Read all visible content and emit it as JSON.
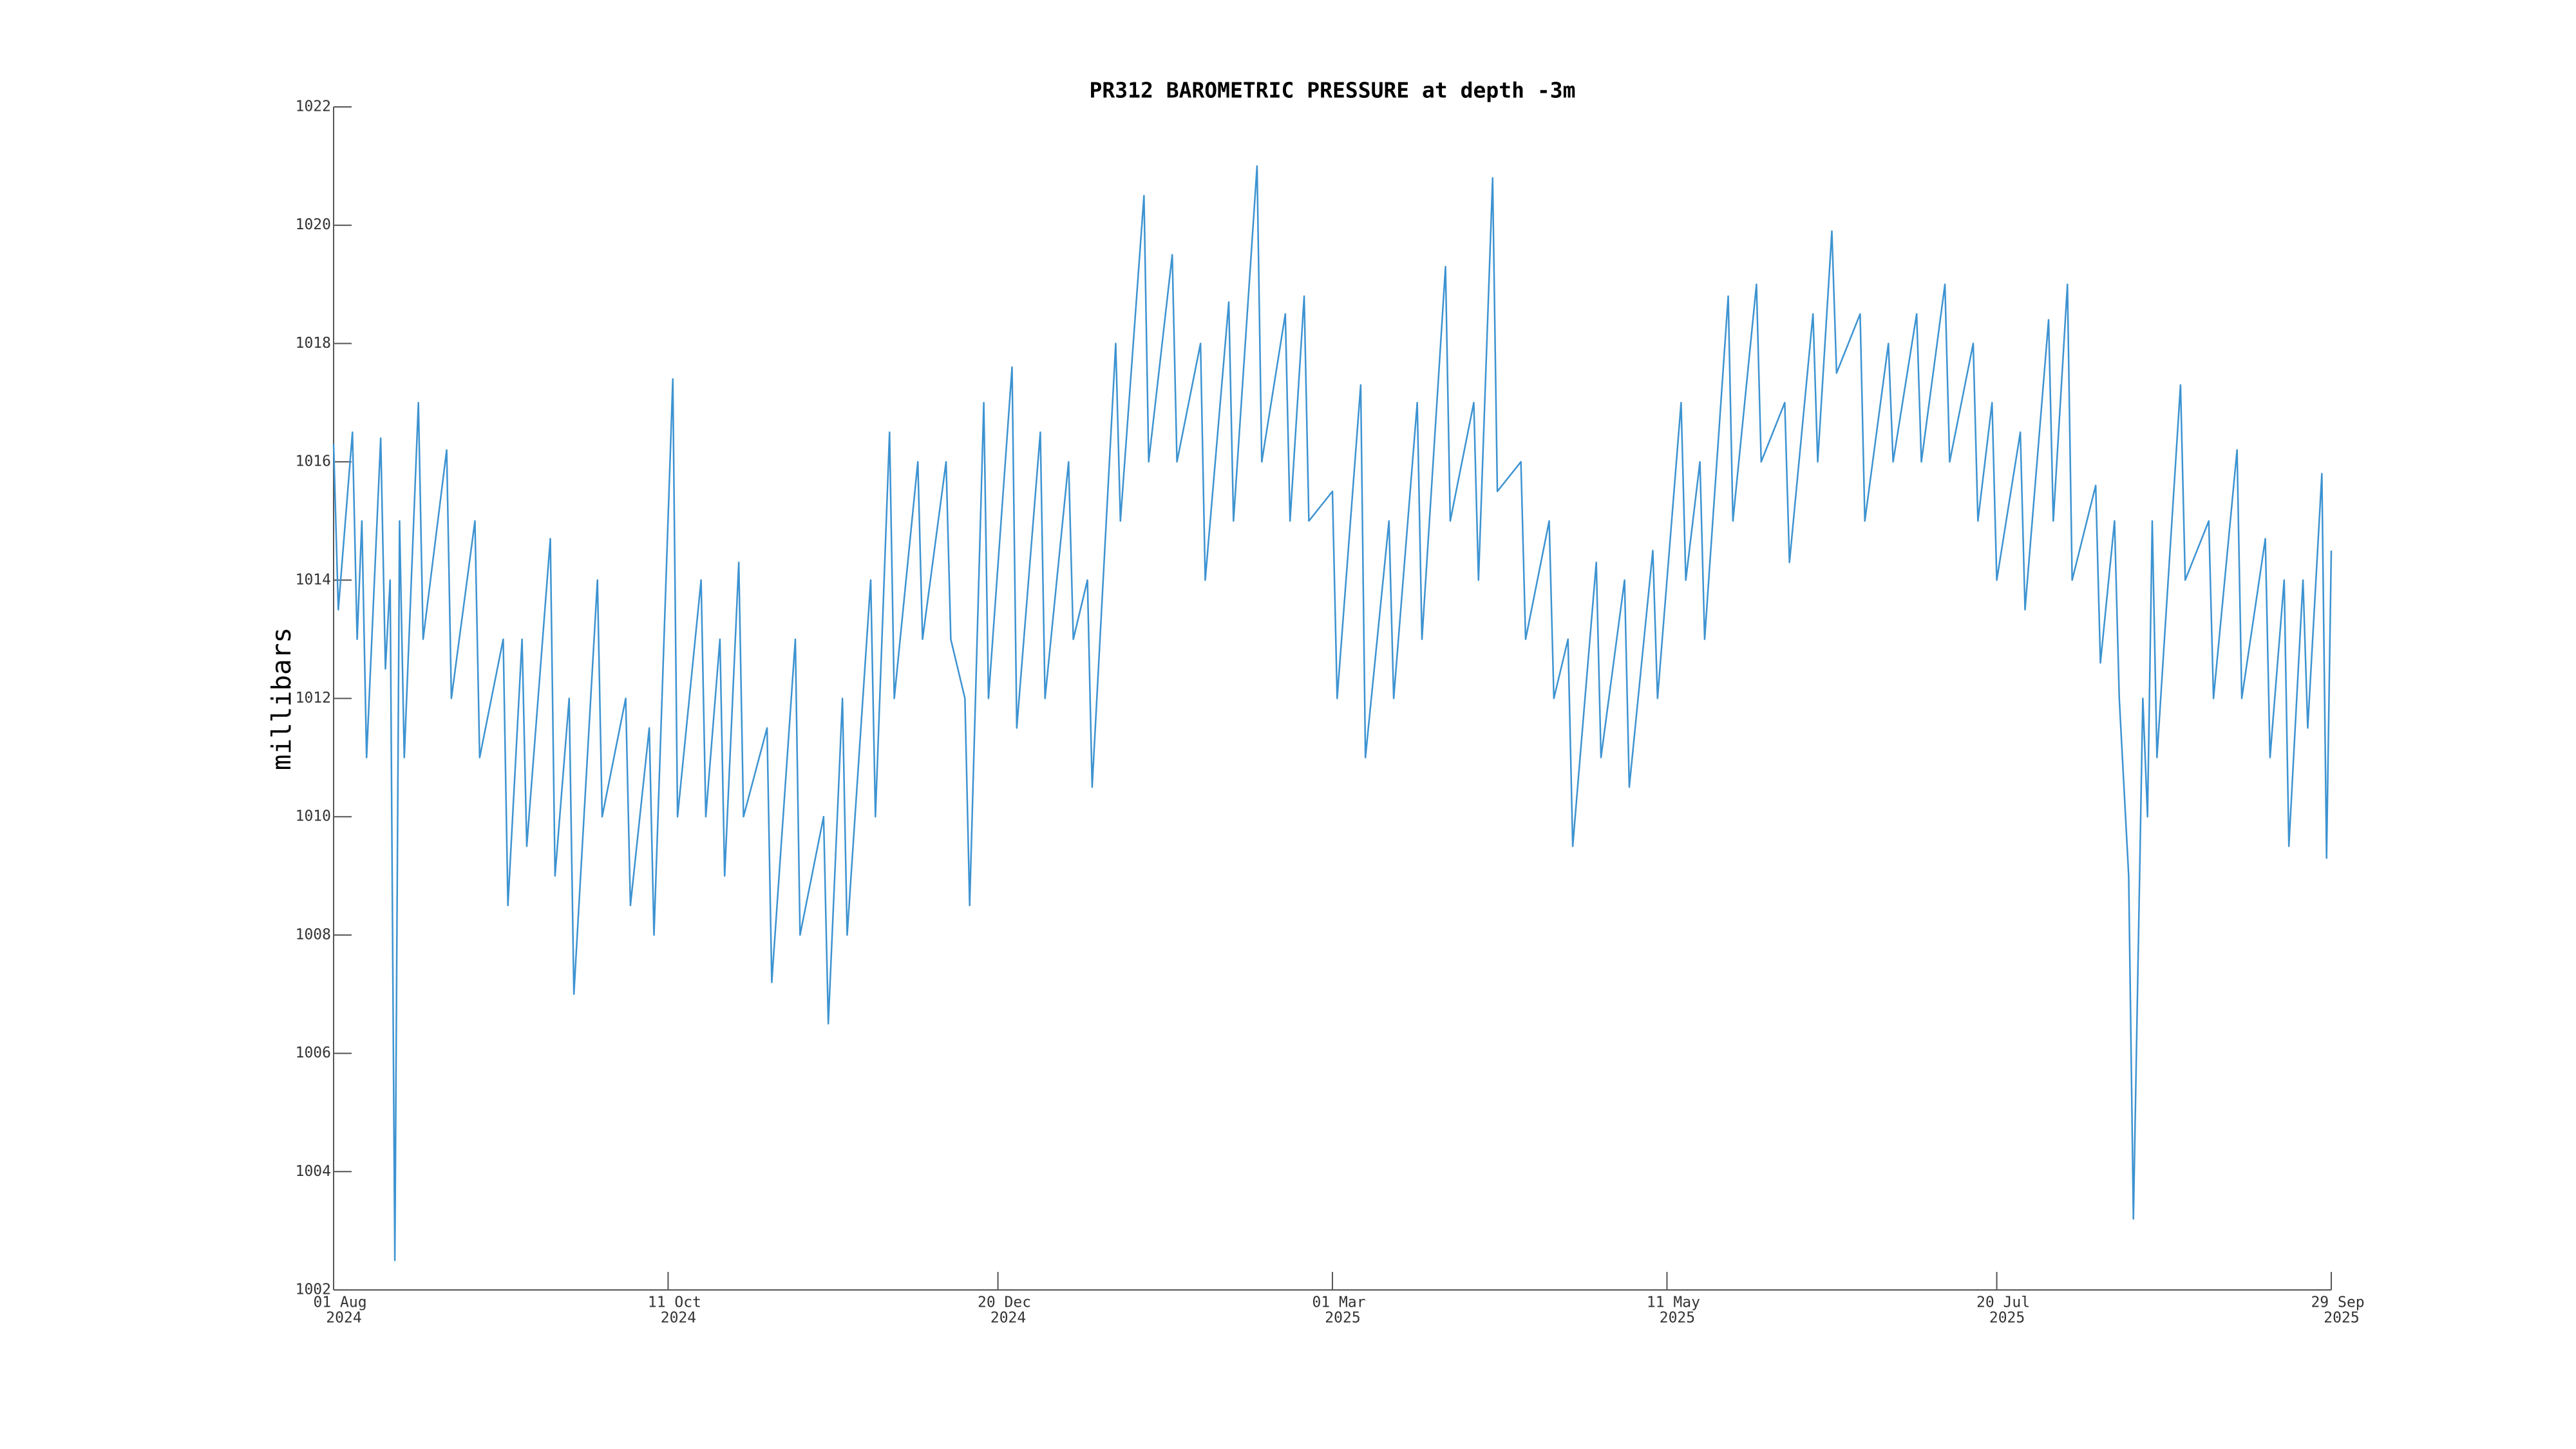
{
  "chart_data": {
    "type": "line",
    "title": "PR312 BAROMETRIC PRESSURE at depth -3m",
    "y_label": "millibars",
    "x": [
      "2024-08-01",
      "2024-08-02",
      "2024-08-05",
      "2024-08-06",
      "2024-08-07",
      "2024-08-08",
      "2024-08-11",
      "2024-08-12",
      "2024-08-13",
      "2024-08-14",
      "2024-08-15",
      "2024-08-16",
      "2024-08-19",
      "2024-08-20",
      "2024-08-25",
      "2024-08-26",
      "2024-08-31",
      "2024-09-01",
      "2024-09-06",
      "2024-09-07",
      "2024-09-10",
      "2024-09-11",
      "2024-09-16",
      "2024-09-17",
      "2024-09-20",
      "2024-09-21",
      "2024-09-26",
      "2024-09-27",
      "2024-10-02",
      "2024-10-03",
      "2024-10-07",
      "2024-10-08",
      "2024-10-12",
      "2024-10-13",
      "2024-10-18",
      "2024-10-19",
      "2024-10-22",
      "2024-10-23",
      "2024-10-26",
      "2024-10-27",
      "2024-11-01",
      "2024-11-02",
      "2024-11-07",
      "2024-11-08",
      "2024-11-13",
      "2024-11-14",
      "2024-11-17",
      "2024-11-18",
      "2024-11-23",
      "2024-11-24",
      "2024-11-27",
      "2024-11-28",
      "2024-12-03",
      "2024-12-04",
      "2024-12-09",
      "2024-12-10",
      "2024-12-13",
      "2024-12-14",
      "2024-12-17",
      "2024-12-18",
      "2024-12-23",
      "2024-12-24",
      "2024-12-29",
      "2024-12-30",
      "2025-01-04",
      "2025-01-05",
      "2025-01-08",
      "2025-01-09",
      "2025-01-14",
      "2025-01-15",
      "2025-01-20",
      "2025-01-21",
      "2025-01-26",
      "2025-01-27",
      "2025-02-01",
      "2025-02-02",
      "2025-02-07",
      "2025-02-08",
      "2025-02-13",
      "2025-02-14",
      "2025-02-19",
      "2025-02-20",
      "2025-02-23",
      "2025-02-24",
      "2025-03-01",
      "2025-03-02",
      "2025-03-07",
      "2025-03-08",
      "2025-03-13",
      "2025-03-14",
      "2025-03-19",
      "2025-03-20",
      "2025-03-25",
      "2025-03-26",
      "2025-03-31",
      "2025-04-01",
      "2025-04-04",
      "2025-04-05",
      "2025-04-10",
      "2025-04-11",
      "2025-04-16",
      "2025-04-17",
      "2025-04-20",
      "2025-04-21",
      "2025-04-26",
      "2025-04-27",
      "2025-05-02",
      "2025-05-03",
      "2025-05-08",
      "2025-05-09",
      "2025-05-14",
      "2025-05-15",
      "2025-05-18",
      "2025-05-19",
      "2025-05-24",
      "2025-05-25",
      "2025-05-30",
      "2025-05-31",
      "2025-06-05",
      "2025-06-06",
      "2025-06-11",
      "2025-06-12",
      "2025-06-15",
      "2025-06-16",
      "2025-06-21",
      "2025-06-22",
      "2025-06-27",
      "2025-06-28",
      "2025-07-03",
      "2025-07-04",
      "2025-07-09",
      "2025-07-10",
      "2025-07-15",
      "2025-07-16",
      "2025-07-19",
      "2025-07-20",
      "2025-07-25",
      "2025-07-26",
      "2025-07-31",
      "2025-08-01",
      "2025-08-04",
      "2025-08-05",
      "2025-08-10",
      "2025-08-11",
      "2025-08-14",
      "2025-08-15",
      "2025-08-17",
      "2025-08-18",
      "2025-08-20",
      "2025-08-21",
      "2025-08-22",
      "2025-08-23",
      "2025-08-28",
      "2025-08-29",
      "2025-09-03",
      "2025-09-04",
      "2025-09-09",
      "2025-09-10",
      "2025-09-15",
      "2025-09-16",
      "2025-09-19",
      "2025-09-20",
      "2025-09-23",
      "2025-09-24",
      "2025-09-27",
      "2025-09-28",
      "2025-09-29"
    ],
    "series": [
      {
        "name": "PR312",
        "color": "#3d93d1",
        "values": [
          1016.3,
          1013.5,
          1016.5,
          1013,
          1015,
          1011,
          1016.4,
          1012.5,
          1014,
          1002.5,
          1015,
          1011,
          1017,
          1013,
          1016.2,
          1012,
          1015,
          1011,
          1013,
          1008.5,
          1013,
          1009.5,
          1014.7,
          1009,
          1012,
          1007,
          1014,
          1010,
          1012,
          1008.5,
          1011.5,
          1008,
          1017.4,
          1010,
          1014,
          1010,
          1013,
          1009,
          1014.3,
          1010,
          1011.5,
          1007.2,
          1013,
          1008,
          1010,
          1006.5,
          1012,
          1008,
          1014,
          1010,
          1016.5,
          1012,
          1016,
          1013,
          1016,
          1013,
          1012,
          1008.5,
          1017,
          1012,
          1017.6,
          1011.5,
          1016.5,
          1012,
          1016,
          1013,
          1014,
          1010.5,
          1018,
          1015,
          1020.5,
          1016,
          1019.5,
          1016,
          1018,
          1014,
          1018.7,
          1015,
          1021,
          1016,
          1018.5,
          1015,
          1018.8,
          1015,
          1015.5,
          1012,
          1017.3,
          1011,
          1015,
          1012,
          1017,
          1013,
          1019.3,
          1015,
          1017,
          1014,
          1020.8,
          1015.5,
          1016,
          1013,
          1015,
          1012,
          1013,
          1009.5,
          1014.3,
          1011,
          1014,
          1010.5,
          1014.5,
          1012,
          1017,
          1014,
          1016,
          1013,
          1018.8,
          1015,
          1019,
          1016,
          1017,
          1014.3,
          1018.5,
          1016,
          1019.9,
          1017.5,
          1018.5,
          1015,
          1018,
          1016,
          1018.5,
          1016,
          1019,
          1016,
          1018,
          1015,
          1017,
          1014,
          1016.5,
          1013.5,
          1018.4,
          1015,
          1019,
          1014,
          1015.6,
          1012.6,
          1015,
          1012,
          1009,
          1003.2,
          1012,
          1010,
          1015,
          1011,
          1017.3,
          1014,
          1015,
          1012,
          1016.2,
          1012,
          1014.7,
          1011,
          1014,
          1009.5,
          1014,
          1011.5,
          1015.8,
          1009.3,
          1014.5
        ]
      }
    ],
    "xlim": [
      "2024-08-01",
      "2025-09-29"
    ],
    "xticks": [
      {
        "value": "2024-08-01",
        "label": [
          "01 Aug",
          "2024"
        ]
      },
      {
        "value": "2024-10-11",
        "label": [
          "11 Oct",
          "2024"
        ]
      },
      {
        "value": "2024-12-20",
        "label": [
          "20 Dec",
          "2024"
        ]
      },
      {
        "value": "2025-03-01",
        "label": [
          "01 Mar",
          "2025"
        ]
      },
      {
        "value": "2025-05-11",
        "label": [
          "11 May",
          "2025"
        ]
      },
      {
        "value": "2025-07-20",
        "label": [
          "20 Jul",
          "2025"
        ]
      },
      {
        "value": "2025-09-29",
        "label": [
          "29 Sep",
          "2025"
        ]
      }
    ],
    "ylim": [
      1002,
      1022
    ],
    "yticks": [
      1002,
      1004,
      1006,
      1008,
      1010,
      1012,
      1014,
      1016,
      1018,
      1020,
      1022
    ],
    "grid": false
  }
}
